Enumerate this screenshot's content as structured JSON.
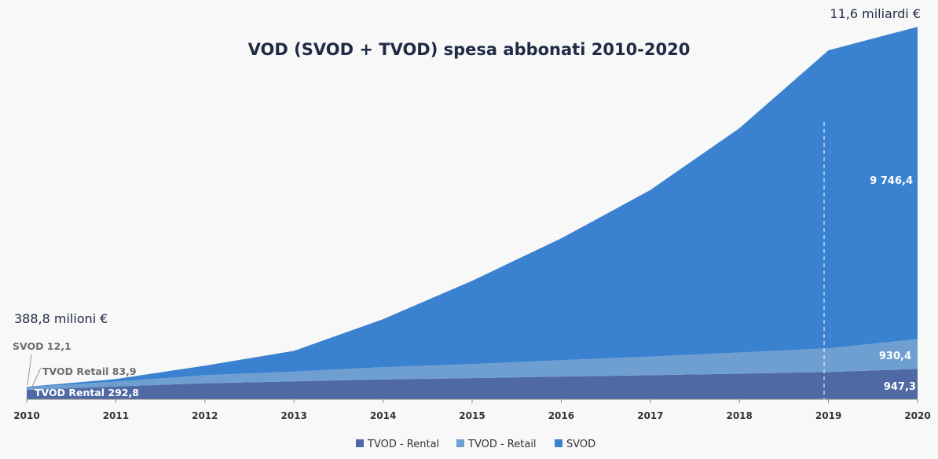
{
  "chart_data": {
    "type": "area",
    "stacked": true,
    "title": "VOD (SVOD + TVOD) spesa abbonati 2010-2020",
    "xlabel": "",
    "ylabel": "",
    "categories": [
      "2010",
      "2011",
      "2012",
      "2013",
      "2014",
      "2015",
      "2016",
      "2017",
      "2018",
      "2019",
      "2020"
    ],
    "ylim": [
      0,
      11700
    ],
    "series": [
      {
        "name": "TVOD - Rental",
        "color": "#4f69a5",
        "values": [
          292.8,
          400,
          500,
          560,
          620,
          660,
          710,
          750,
          800,
          850,
          947.3
        ]
      },
      {
        "name": "TVOD - Retail",
        "color": "#6f9fd1",
        "values": [
          83.9,
          150,
          250,
          300,
          380,
          440,
          510,
          580,
          660,
          740,
          930.4
        ]
      },
      {
        "name": "SVOD",
        "color": "#3a82d0",
        "values": [
          12.1,
          80,
          300,
          650,
          1500,
          2600,
          3800,
          5200,
          7000,
          9300,
          9746.4
        ]
      }
    ],
    "grid": false,
    "legend": "bottom",
    "annotations": {
      "total_2010": "388,8 milioni €",
      "total_2020": "11,6 miliardi €",
      "svod_2010": "SVOD 12,1",
      "retail_2010": "TVOD Retail 83,9",
      "rental_2010": "TVOD Rental 292,8",
      "svod_2020": "9 746,4",
      "retail_2020": "930,4",
      "rental_2020": "947,3"
    }
  }
}
